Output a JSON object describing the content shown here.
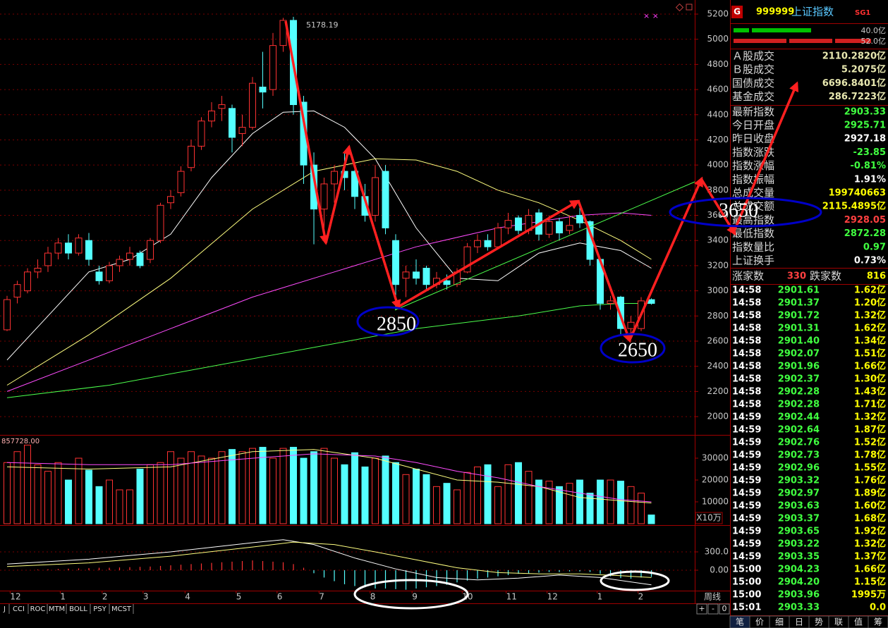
{
  "chart_data": [
    {
      "type": "candlestick",
      "x": [
        0,
        1,
        2,
        3,
        4,
        5,
        6,
        7,
        8,
        9,
        10,
        11,
        12,
        13,
        14,
        15,
        16,
        17,
        18,
        19,
        20,
        21,
        22,
        23,
        24,
        25,
        26,
        27,
        28,
        29,
        30,
        31,
        32,
        33,
        34,
        35,
        36,
        37,
        38,
        39,
        40,
        41,
        42,
        43,
        44,
        45,
        46,
        47,
        48,
        49,
        50,
        51,
        52,
        53,
        54,
        55,
        56,
        57,
        58,
        59,
        60,
        61,
        62,
        63
      ],
      "open": [
        2690,
        2950,
        3000,
        3150,
        3200,
        3300,
        3380,
        3300,
        3400,
        3150,
        3080,
        3200,
        3250,
        3300,
        3250,
        3400,
        3700,
        3780,
        3980,
        4150,
        4350,
        4450,
        4450,
        4250,
        4300,
        4620,
        4600,
        4950,
        5150,
        4500,
        4000,
        3650,
        3850,
        3950,
        3950,
        3750,
        3600,
        3950,
        3400,
        3100,
        3150,
        3180,
        3050,
        3080,
        3050,
        3150,
        3350,
        3400,
        3350,
        3500,
        3580,
        3480,
        3620,
        3450,
        3550,
        3480,
        3600,
        3550,
        3250,
        2900,
        2950,
        2700,
        2700,
        2930
      ],
      "close": [
        2930,
        3050,
        3150,
        3180,
        3300,
        3380,
        3300,
        3420,
        3250,
        3080,
        3200,
        3250,
        3300,
        3200,
        3400,
        3680,
        3750,
        3950,
        4150,
        4350,
        4430,
        4480,
        4220,
        4300,
        4650,
        4580,
        4950,
        5150,
        4480,
        4000,
        3650,
        3850,
        3950,
        3900,
        3750,
        3600,
        3900,
        3500,
        3050,
        3150,
        3100,
        3050,
        3100,
        3050,
        3150,
        3350,
        3400,
        3350,
        3500,
        3560,
        3480,
        3600,
        3450,
        3550,
        3460,
        3520,
        3540,
        3250,
        2900,
        2920,
        2700,
        2750,
        2920,
        2900
      ],
      "high": [
        2960,
        3080,
        3180,
        3250,
        3350,
        3420,
        3450,
        3450,
        3460,
        3200,
        3230,
        3280,
        3350,
        3320,
        3420,
        3700,
        3800,
        3990,
        4200,
        4380,
        4500,
        4550,
        4480,
        4400,
        4700,
        4900,
        5050,
        5170,
        5178.19,
        4550,
        4100,
        3900,
        4000,
        4100,
        4000,
        3850,
        4000,
        4000,
        3450,
        3200,
        3250,
        3200,
        3150,
        3130,
        3180,
        3380,
        3450,
        3450,
        3540,
        3620,
        3600,
        3650,
        3650,
        3600,
        3580,
        3600,
        3680,
        3560,
        3260,
        2960,
        2960,
        2800,
        2950,
        2940
      ],
      "low": [
        2680,
        2900,
        2980,
        3100,
        3150,
        3250,
        3250,
        3280,
        3200,
        3050,
        3060,
        3150,
        3200,
        3180,
        3220,
        3380,
        3650,
        3750,
        3950,
        4120,
        4300,
        4350,
        4100,
        4150,
        4280,
        4450,
        4550,
        4900,
        4400,
        3850,
        3370,
        3500,
        3700,
        3800,
        3650,
        3550,
        3550,
        3450,
        2850,
        2950,
        3050,
        3000,
        3020,
        3010,
        3030,
        3140,
        3300,
        3320,
        3330,
        3450,
        3450,
        3450,
        3400,
        3420,
        3400,
        3450,
        3500,
        3200,
        2850,
        2850,
        2640,
        2650,
        2680,
        2890
      ],
      "colors": {
        "up": "#ff3232",
        "down": "#54ffff"
      },
      "series": [
        {
          "color": "#ffffff",
          "x": [
            0,
            4,
            8,
            12,
            16,
            20,
            24,
            27,
            30,
            33,
            36,
            40,
            44,
            48,
            52,
            56,
            60,
            63
          ],
          "values": [
            2450,
            2800,
            3150,
            3250,
            3450,
            3900,
            4250,
            4420,
            4430,
            4300,
            4050,
            3500,
            3100,
            3080,
            3300,
            3380,
            3320,
            3180
          ]
        },
        {
          "color": "#ffff80",
          "x": [
            0,
            8,
            16,
            24,
            30,
            36,
            40,
            44,
            48,
            52,
            56,
            60,
            63
          ],
          "values": [
            2250,
            2650,
            3100,
            3650,
            3950,
            4050,
            4040,
            3950,
            3800,
            3700,
            3560,
            3400,
            3250
          ]
        },
        {
          "color": "#ff4cff",
          "x": [
            0,
            8,
            16,
            24,
            32,
            40,
            48,
            56,
            60,
            63
          ],
          "values": [
            2200,
            2450,
            2700,
            2950,
            3150,
            3350,
            3500,
            3600,
            3620,
            3600
          ]
        },
        {
          "color": "#4cff4c",
          "x": [
            0,
            10,
            20,
            30,
            40,
            50,
            56,
            60,
            63
          ],
          "values": [
            2150,
            2250,
            2400,
            2550,
            2700,
            2800,
            2880,
            2900,
            2900
          ]
        }
      ],
      "xlim": [
        -0.69,
        67.24
      ],
      "xticks": [
        {
          "value": 0.3,
          "label": "12"
        },
        {
          "value": 5.2,
          "label": "1"
        },
        {
          "value": 9.3,
          "label": "2"
        },
        {
          "value": 13.3,
          "label": "3"
        },
        {
          "value": 17.4,
          "label": "4"
        },
        {
          "value": 22.4,
          "label": "5"
        },
        {
          "value": 26.4,
          "label": "6"
        },
        {
          "value": 30.5,
          "label": "7"
        },
        {
          "value": 35.5,
          "label": "8"
        },
        {
          "value": 39.6,
          "label": "9"
        },
        {
          "value": 44.5,
          "label": "10"
        },
        {
          "value": 48.8,
          "label": "11"
        },
        {
          "value": 52.8,
          "label": "12"
        },
        {
          "value": 57.7,
          "label": "1"
        },
        {
          "value": 61.7,
          "label": "2"
        }
      ],
      "ylim": [
        1866,
        5312
      ],
      "yticks": [
        2000,
        2200,
        2400,
        2600,
        2800,
        3000,
        3200,
        3400,
        3600,
        3800,
        4000,
        4200,
        4400,
        4600,
        4800,
        5000,
        5200
      ],
      "grid": true,
      "annotations": [
        {
          "label": "2850"
        },
        {
          "label": "2650"
        },
        {
          "label": "3650"
        }
      ]
    },
    {
      "type": "bar",
      "label": "857728.00",
      "unit_label": "X10万",
      "values": [
        28000,
        33000,
        36000,
        27000,
        24000,
        28000,
        20000,
        30000,
        24500,
        17000,
        20000,
        15500,
        15500,
        25000,
        27000,
        28000,
        33000,
        30000,
        33000,
        31000,
        30000,
        33000,
        34000,
        33000,
        34500,
        35000,
        30000,
        34500,
        35000,
        30000,
        33000,
        34500,
        30000,
        27000,
        32500,
        26000,
        30000,
        31000,
        28000,
        22500,
        25000,
        22500,
        17000,
        18500,
        15500,
        23500,
        26000,
        27000,
        17000,
        27000,
        28000,
        24000,
        20000,
        19500,
        17000,
        18500,
        20000,
        14000,
        20000,
        20000,
        19500,
        17000,
        14000,
        4000
      ],
      "colors": {
        "up": "#ff3232",
        "down": "#54ffff"
      },
      "series": [
        {
          "color": "#ffff80",
          "x": [
            0,
            8,
            16,
            24,
            30,
            36,
            40,
            44,
            48,
            52,
            56,
            60,
            63
          ],
          "values": [
            26000,
            25000,
            26000,
            33000,
            34000,
            30000,
            25000,
            20000,
            19000,
            17000,
            12000,
            10500,
            9500
          ]
        },
        {
          "color": "#ff4cff",
          "x": [
            0,
            8,
            16,
            24,
            30,
            36,
            40,
            44,
            48,
            52,
            56,
            60,
            63
          ],
          "values": [
            28000,
            27000,
            27000,
            30000,
            32000,
            31000,
            28000,
            24000,
            21000,
            17000,
            14000,
            11000,
            10000
          ]
        }
      ],
      "ylim": [
        0,
        39700
      ],
      "yticks": [
        10000,
        20000,
        30000
      ],
      "grid": false
    },
    {
      "type": "bar",
      "period_label": "周线",
      "values": [
        0,
        0,
        0,
        10,
        15,
        20,
        25,
        30,
        35,
        40,
        40,
        45,
        50,
        55,
        60,
        70,
        80,
        90,
        100,
        110,
        120,
        130,
        140,
        150,
        160,
        150,
        140,
        130,
        100,
        40,
        -50,
        -120,
        -180,
        -230,
        -260,
        -280,
        -300,
        -300,
        -310,
        -320,
        -300,
        -280,
        -260,
        -240,
        -200,
        -170,
        -140,
        -120,
        -100,
        -80,
        -60,
        -50,
        -40,
        -30,
        -30,
        -20,
        -20,
        -30,
        -60,
        -100,
        -130,
        -140,
        -120,
        -110
      ],
      "colors": {
        "up": "#ff3232",
        "down": "#54ffff"
      },
      "series": [
        {
          "color": "#ffffff",
          "x": [
            0,
            8,
            16,
            24,
            27,
            30,
            34,
            38,
            42,
            46,
            50,
            54,
            58,
            63
          ],
          "values": [
            100,
            180,
            300,
            450,
            500,
            420,
            200,
            20,
            -120,
            -160,
            -130,
            -80,
            -120,
            -240
          ]
        },
        {
          "color": "#ffff80",
          "x": [
            0,
            8,
            16,
            24,
            28,
            32,
            36,
            40,
            44,
            48,
            52,
            56,
            60,
            63
          ],
          "values": [
            60,
            120,
            230,
            380,
            460,
            420,
            300,
            170,
            40,
            -40,
            -60,
            -60,
            -90,
            -120
          ]
        }
      ],
      "ylim": [
        -335,
        704
      ],
      "yticks": [
        {
          "value": 0,
          "label": "0.00"
        },
        {
          "value": 300,
          "label": "300.0"
        }
      ],
      "grid": true
    }
  ],
  "indicator_tabs": [
    "J",
    "CCI",
    "ROC",
    "MTM",
    "BOLL",
    "PSY",
    "MCST"
  ],
  "zoom_buttons": [
    "+",
    "-",
    "0"
  ],
  "side_panel": {
    "badge": "G",
    "code": "999999",
    "name": "上证指数",
    "tag": "SG1",
    "buy_bar": "40.0亿",
    "sell_bar": "52.0亿",
    "stats": [
      {
        "label": "Ａ股成交",
        "value": "2110.2820亿",
        "color": "#e8e8b0"
      },
      {
        "label": "Ｂ股成交",
        "value": "5.2075亿",
        "color": "#e8e8b0"
      },
      {
        "label": "国债成交",
        "value": "6696.8401亿",
        "color": "#e8e8b0"
      },
      {
        "label": "基金成交",
        "value": "286.7223亿",
        "color": "#e8e8b0"
      },
      {
        "label": "最新指数",
        "value": "2903.33",
        "color": "#40ff40"
      },
      {
        "label": "今日开盘",
        "value": "2925.71",
        "color": "#40ff40"
      },
      {
        "label": "昨日收盘",
        "value": "2927.18",
        "color": "#ffffff"
      },
      {
        "label": "指数涨跌",
        "value": "-23.85",
        "color": "#40ff40"
      },
      {
        "label": "指数涨幅",
        "value": "-0.81%",
        "color": "#40ff40"
      },
      {
        "label": "指数振幅",
        "value": "1.91%",
        "color": "#ffffff"
      },
      {
        "label": "总成交量",
        "value": "199740663",
        "color": "#ffff00"
      },
      {
        "label": "总成交额",
        "value": "2115.4895亿",
        "color": "#ffff00"
      },
      {
        "label": "最高指数",
        "value": "2928.05",
        "color": "#ff4040"
      },
      {
        "label": "最低指数",
        "value": "2872.28",
        "color": "#40ff40"
      },
      {
        "label": "指数量比",
        "value": "0.97",
        "color": "#40ff40"
      },
      {
        "label": "上证换手",
        "value": "0.73%",
        "color": "#ffffff"
      }
    ],
    "breadth": {
      "up_label": "涨家数",
      "up": "330",
      "down_label": "跌家数",
      "down": "816"
    },
    "ticks": [
      [
        "14:58",
        "2901.61",
        "1.62亿"
      ],
      [
        "14:58",
        "2901.37",
        "1.20亿"
      ],
      [
        "14:58",
        "2901.72",
        "1.32亿"
      ],
      [
        "14:58",
        "2901.31",
        "1.62亿"
      ],
      [
        "14:58",
        "2901.40",
        "1.34亿"
      ],
      [
        "14:58",
        "2902.07",
        "1.51亿"
      ],
      [
        "14:58",
        "2901.96",
        "1.66亿"
      ],
      [
        "14:58",
        "2902.37",
        "1.30亿"
      ],
      [
        "14:58",
        "2902.28",
        "1.43亿"
      ],
      [
        "14:58",
        "2902.28",
        "1.71亿"
      ],
      [
        "14:59",
        "2902.44",
        "1.32亿"
      ],
      [
        "14:59",
        "2902.64",
        "1.87亿"
      ],
      [
        "14:59",
        "2902.76",
        "1.52亿"
      ],
      [
        "14:59",
        "2902.73",
        "1.78亿"
      ],
      [
        "14:59",
        "2902.96",
        "1.55亿"
      ],
      [
        "14:59",
        "2903.32",
        "1.76亿"
      ],
      [
        "14:59",
        "2902.97",
        "1.89亿"
      ],
      [
        "14:59",
        "2903.63",
        "1.60亿"
      ],
      [
        "14:59",
        "2903.37",
        "1.68亿"
      ],
      [
        "14:59",
        "2903.65",
        "1.92亿"
      ],
      [
        "14:59",
        "2903.22",
        "1.32亿"
      ],
      [
        "14:59",
        "2903.35",
        "1.37亿"
      ],
      [
        "15:00",
        "2904.23",
        "1.66亿"
      ],
      [
        "15:00",
        "2904.20",
        "1.15亿"
      ],
      [
        "15:00",
        "2903.96",
        "1995万"
      ],
      [
        "15:01",
        "2903.33",
        "0.0"
      ]
    ],
    "tabs": [
      "笔",
      "价",
      "细",
      "日",
      "势",
      "联",
      "值",
      "筹"
    ]
  }
}
